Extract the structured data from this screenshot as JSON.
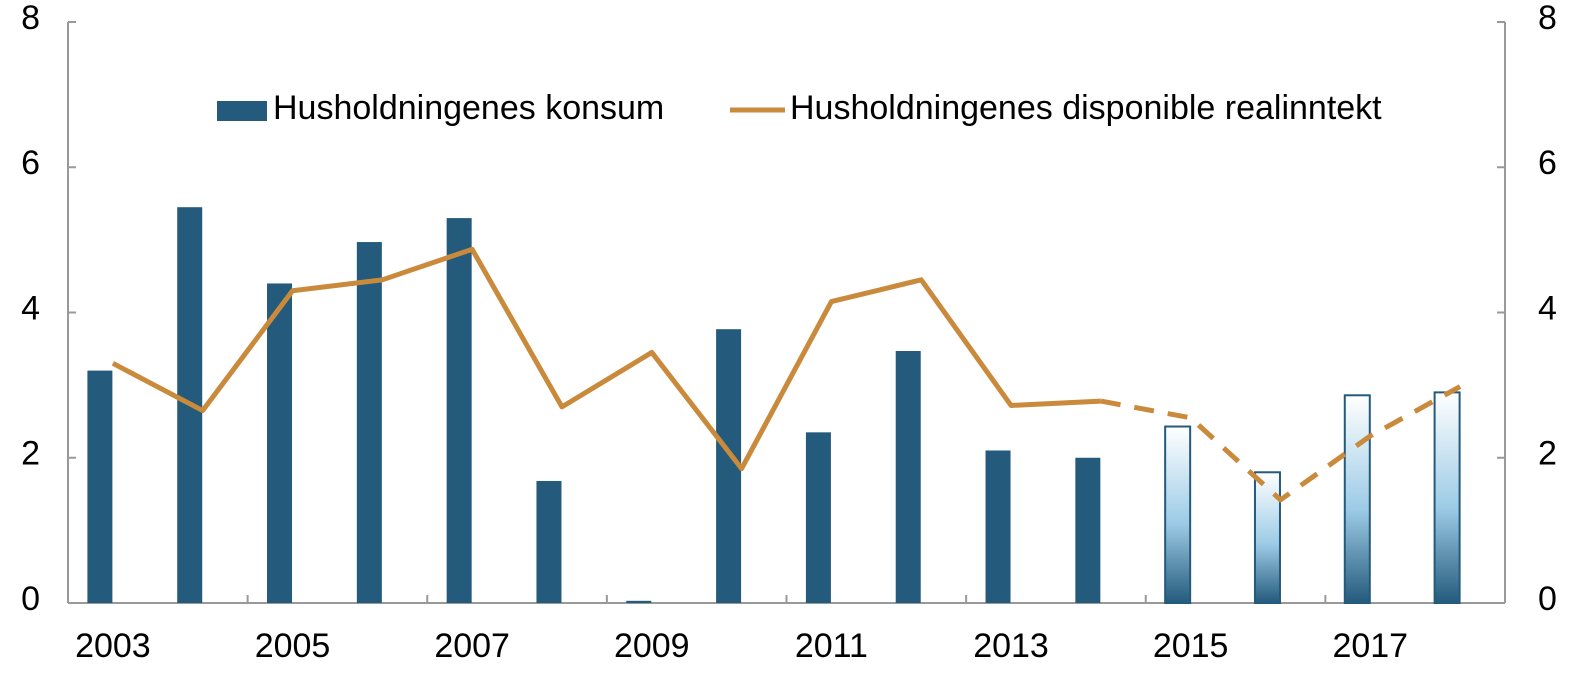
{
  "chart_data": {
    "type": "bar_line",
    "categories": [
      "2003",
      null,
      "2005",
      null,
      "2007",
      null,
      "2009",
      null,
      "2011",
      null,
      "2013",
      null,
      "2015",
      null,
      "2017",
      null
    ],
    "series": [
      {
        "name": "Husholdningenes konsum",
        "type": "bar",
        "color": "#245a7b",
        "values": [
          3.2,
          5.45,
          4.4,
          4.97,
          5.3,
          1.68,
          0.03,
          3.77,
          2.35,
          3.47,
          2.1,
          2.0,
          2.43,
          1.8,
          2.86,
          2.9
        ]
      },
      {
        "name": "Husholdningenes disponible realinntekt",
        "type": "line",
        "color": "#c98a3c",
        "values": [
          3.3,
          2.65,
          4.3,
          4.45,
          4.87,
          2.7,
          3.45,
          1.85,
          4.15,
          4.45,
          2.72,
          2.78,
          2.55,
          1.42,
          2.3,
          2.98
        ]
      }
    ],
    "forecast_start": "2015",
    "ylim": [
      0,
      8
    ],
    "yticks": [
      0,
      2,
      4,
      6,
      8
    ],
    "y2lim": [
      0,
      8
    ],
    "y2ticks": [
      0,
      2,
      4,
      6,
      8
    ],
    "legend": "top"
  }
}
